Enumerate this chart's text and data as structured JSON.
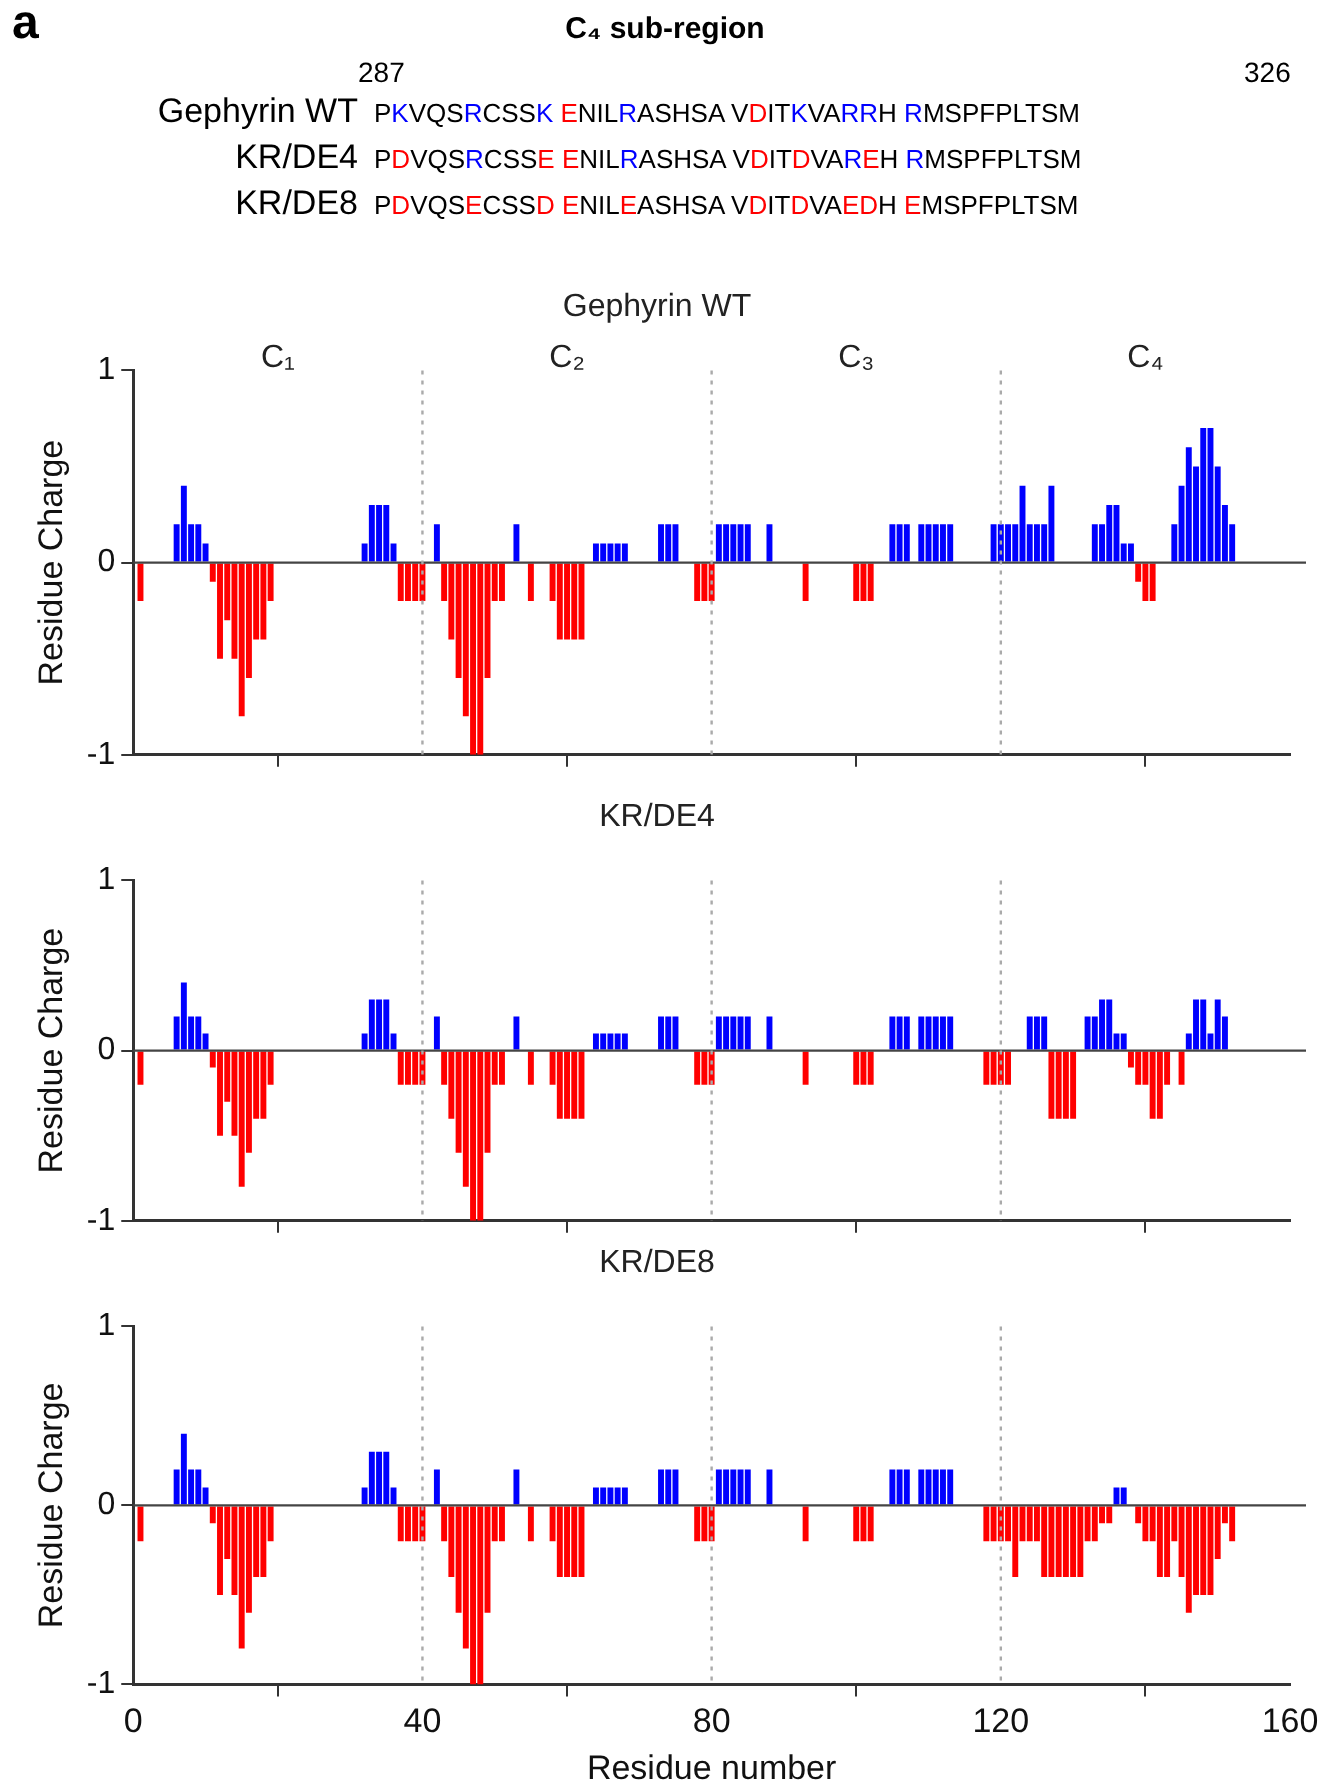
{
  "chart_data": [
    {
      "type": "other",
      "title": "C₄ sub-region",
      "categories": [
        "Gephyrin WT",
        "KR/DE4",
        "KR/DE8"
      ],
      "annotations": [
        "a",
        "287",
        "326",
        "PKVQSRCSSK ENILRASHSA VDITKVARRH RMSPFPLTSM",
        "PDVQSRCSSE ENILRASHSA VDITDVAREH RMSPFPLTSM",
        "PDVQSECSSD ENILEASHSA VDITDVAEDH EMSPFPLTSM"
      ]
    },
    {
      "type": "bar",
      "stacked": true,
      "title": "Gephyrin WT",
      "ylabel": "Residue Charge",
      "xlim": [
        0,
        160
      ],
      "xticks": [
        0,
        40,
        80,
        120,
        160
      ],
      "ylim": [
        -1,
        1
      ],
      "yticks": [
        -1,
        0,
        1
      ],
      "tick_labels": "y",
      "ref_lines": [
        {
          "axis": "y",
          "value": 0,
          "color": "#444444",
          "line_style": "solid"
        },
        {
          "axis": "x",
          "value": 40,
          "color": "#aaaaaa",
          "line_style": "dotted"
        },
        {
          "axis": "x",
          "value": 80,
          "color": "#aaaaaa",
          "line_style": "dotted"
        },
        {
          "axis": "x",
          "value": 120,
          "color": "#aaaaaa",
          "line_style": "dotted"
        }
      ],
      "annotations": [
        "C₁",
        "C₂",
        "C₃",
        "C₄"
      ],
      "series": [
        {
          "color": "#0000ff",
          "x": [
            6,
            7,
            8,
            9,
            10,
            32,
            33,
            34,
            35,
            36,
            42,
            53,
            64,
            65,
            66,
            67,
            68,
            73,
            74,
            75,
            81,
            82,
            83,
            84,
            85,
            88,
            105,
            106,
            107,
            109,
            110,
            111,
            112,
            113,
            119,
            120,
            121,
            122,
            123,
            124,
            125,
            126,
            127,
            133,
            134,
            135,
            136,
            137,
            138,
            144,
            145,
            146,
            147,
            148,
            149,
            150,
            151,
            152
          ],
          "values": [
            0.2,
            0.4,
            0.2,
            0.2,
            0.1,
            0.1,
            0.3,
            0.3,
            0.3,
            0.1,
            0.2,
            0.2,
            0.1,
            0.1,
            0.1,
            0.1,
            0.1,
            0.2,
            0.2,
            0.2,
            0.2,
            0.2,
            0.2,
            0.2,
            0.2,
            0.2,
            0.2,
            0.2,
            0.2,
            0.2,
            0.2,
            0.2,
            0.2,
            0.2,
            0.2,
            0.2,
            0.2,
            0.2,
            0.4,
            0.2,
            0.2,
            0.2,
            0.4,
            0.2,
            0.2,
            0.3,
            0.3,
            0.1,
            0.1,
            0.2,
            0.4,
            0.6,
            0.5,
            0.7,
            0.7,
            0.5,
            0.3,
            0.2
          ]
        },
        {
          "color": "#ff0000",
          "x": [
            1,
            11,
            12,
            13,
            14,
            15,
            16,
            17,
            18,
            19,
            37,
            38,
            39,
            40,
            43,
            44,
            45,
            46,
            47,
            48,
            49,
            50,
            51,
            55,
            58,
            59,
            60,
            61,
            62,
            78,
            79,
            80,
            93,
            100,
            101,
            102,
            139,
            140,
            141
          ],
          "values": [
            -0.2,
            -0.1,
            -0.5,
            -0.3,
            -0.5,
            -0.8,
            -0.6,
            -0.4,
            -0.4,
            -0.2,
            -0.2,
            -0.2,
            -0.2,
            -0.2,
            -0.2,
            -0.4,
            -0.6,
            -0.8,
            -1,
            -1,
            -0.6,
            -0.2,
            -0.2,
            -0.2,
            -0.2,
            -0.4,
            -0.4,
            -0.4,
            -0.4,
            -0.2,
            -0.2,
            -0.2,
            -0.2,
            -0.2,
            -0.2,
            -0.2,
            -0.1,
            -0.2,
            -0.2
          ]
        }
      ]
    },
    {
      "type": "bar",
      "stacked": true,
      "title": "KR/DE4",
      "ylabel": "Residue Charge",
      "xlim": [
        0,
        160
      ],
      "xticks": [
        0,
        40,
        80,
        120,
        160
      ],
      "ylim": [
        -1,
        1
      ],
      "yticks": [
        -1,
        0,
        1
      ],
      "tick_labels": "y",
      "ref_lines": [
        {
          "axis": "y",
          "value": 0,
          "color": "#444444",
          "line_style": "solid"
        },
        {
          "axis": "x",
          "value": 40,
          "color": "#aaaaaa",
          "line_style": "dotted"
        },
        {
          "axis": "x",
          "value": 80,
          "color": "#aaaaaa",
          "line_style": "dotted"
        },
        {
          "axis": "x",
          "value": 120,
          "color": "#aaaaaa",
          "line_style": "dotted"
        }
      ],
      "series": [
        {
          "color": "#0000ff",
          "x": [
            6,
            7,
            8,
            9,
            10,
            32,
            33,
            34,
            35,
            36,
            42,
            53,
            64,
            65,
            66,
            67,
            68,
            73,
            74,
            75,
            81,
            82,
            83,
            84,
            85,
            88,
            105,
            106,
            107,
            109,
            110,
            111,
            112,
            113,
            124,
            125,
            126,
            132,
            133,
            134,
            135,
            136,
            137,
            146,
            147,
            148,
            149,
            150,
            151
          ],
          "values": [
            0.2,
            0.4,
            0.2,
            0.2,
            0.1,
            0.1,
            0.3,
            0.3,
            0.3,
            0.1,
            0.2,
            0.2,
            0.1,
            0.1,
            0.1,
            0.1,
            0.1,
            0.2,
            0.2,
            0.2,
            0.2,
            0.2,
            0.2,
            0.2,
            0.2,
            0.2,
            0.2,
            0.2,
            0.2,
            0.2,
            0.2,
            0.2,
            0.2,
            0.2,
            0.2,
            0.2,
            0.2,
            0.2,
            0.2,
            0.3,
            0.3,
            0.1,
            0.1,
            0.1,
            0.3,
            0.3,
            0.1,
            0.3,
            0.2
          ]
        },
        {
          "color": "#ff0000",
          "x": [
            1,
            11,
            12,
            13,
            14,
            15,
            16,
            17,
            18,
            19,
            37,
            38,
            39,
            40,
            43,
            44,
            45,
            46,
            47,
            48,
            49,
            50,
            51,
            55,
            58,
            59,
            60,
            61,
            62,
            78,
            79,
            80,
            93,
            100,
            101,
            102,
            118,
            119,
            120,
            121,
            127,
            128,
            129,
            130,
            138,
            139,
            140,
            141,
            142,
            143,
            145
          ],
          "values": [
            -0.2,
            -0.1,
            -0.5,
            -0.3,
            -0.5,
            -0.8,
            -0.6,
            -0.4,
            -0.4,
            -0.2,
            -0.2,
            -0.2,
            -0.2,
            -0.2,
            -0.2,
            -0.4,
            -0.6,
            -0.8,
            -1,
            -1,
            -0.6,
            -0.2,
            -0.2,
            -0.2,
            -0.2,
            -0.4,
            -0.4,
            -0.4,
            -0.4,
            -0.2,
            -0.2,
            -0.2,
            -0.2,
            -0.2,
            -0.2,
            -0.2,
            -0.2,
            -0.2,
            -0.2,
            -0.2,
            -0.4,
            -0.4,
            -0.4,
            -0.4,
            -0.1,
            -0.2,
            -0.2,
            -0.4,
            -0.4,
            -0.2,
            -0.2
          ]
        }
      ]
    },
    {
      "type": "bar",
      "stacked": true,
      "title": "KR/DE8",
      "ylabel": "Residue Charge",
      "xlabel": "Residue number",
      "xlim": [
        0,
        160
      ],
      "xticks": [
        0,
        40,
        80,
        120,
        160
      ],
      "ylim": [
        -1,
        1
      ],
      "yticks": [
        -1,
        0,
        1
      ],
      "ref_lines": [
        {
          "axis": "y",
          "value": 0,
          "color": "#444444",
          "line_style": "solid"
        },
        {
          "axis": "x",
          "value": 40,
          "color": "#aaaaaa",
          "line_style": "dotted"
        },
        {
          "axis": "x",
          "value": 80,
          "color": "#aaaaaa",
          "line_style": "dotted"
        },
        {
          "axis": "x",
          "value": 120,
          "color": "#aaaaaa",
          "line_style": "dotted"
        }
      ],
      "series": [
        {
          "color": "#0000ff",
          "x": [
            6,
            7,
            8,
            9,
            10,
            32,
            33,
            34,
            35,
            36,
            42,
            53,
            64,
            65,
            66,
            67,
            68,
            73,
            74,
            75,
            81,
            82,
            83,
            84,
            85,
            88,
            105,
            106,
            107,
            109,
            110,
            111,
            112,
            113,
            136,
            137
          ],
          "values": [
            0.2,
            0.4,
            0.2,
            0.2,
            0.1,
            0.1,
            0.3,
            0.3,
            0.3,
            0.1,
            0.2,
            0.2,
            0.1,
            0.1,
            0.1,
            0.1,
            0.1,
            0.2,
            0.2,
            0.2,
            0.2,
            0.2,
            0.2,
            0.2,
            0.2,
            0.2,
            0.2,
            0.2,
            0.2,
            0.2,
            0.2,
            0.2,
            0.2,
            0.2,
            0.1,
            0.1
          ]
        },
        {
          "color": "#ff0000",
          "x": [
            1,
            11,
            12,
            13,
            14,
            15,
            16,
            17,
            18,
            19,
            37,
            38,
            39,
            40,
            43,
            44,
            45,
            46,
            47,
            48,
            49,
            50,
            51,
            55,
            58,
            59,
            60,
            61,
            62,
            78,
            79,
            80,
            93,
            100,
            101,
            102,
            118,
            119,
            120,
            121,
            122,
            123,
            124,
            125,
            126,
            127,
            128,
            129,
            130,
            131,
            132,
            133,
            134,
            135,
            139,
            140,
            141,
            142,
            143,
            144,
            145,
            146,
            147,
            148,
            149,
            150,
            151,
            152
          ],
          "values": [
            -0.2,
            -0.1,
            -0.5,
            -0.3,
            -0.5,
            -0.8,
            -0.6,
            -0.4,
            -0.4,
            -0.2,
            -0.2,
            -0.2,
            -0.2,
            -0.2,
            -0.2,
            -0.4,
            -0.6,
            -0.8,
            -1,
            -1,
            -0.6,
            -0.2,
            -0.2,
            -0.2,
            -0.2,
            -0.4,
            -0.4,
            -0.4,
            -0.4,
            -0.2,
            -0.2,
            -0.2,
            -0.2,
            -0.2,
            -0.2,
            -0.2,
            -0.2,
            -0.2,
            -0.2,
            -0.2,
            -0.4,
            -0.2,
            -0.2,
            -0.2,
            -0.4,
            -0.4,
            -0.4,
            -0.4,
            -0.4,
            -0.4,
            -0.2,
            -0.2,
            -0.1,
            -0.1,
            -0.1,
            -0.2,
            -0.2,
            -0.4,
            -0.4,
            -0.2,
            -0.4,
            -0.6,
            -0.5,
            -0.5,
            -0.5,
            -0.3,
            -0.1,
            -0.2
          ]
        }
      ]
    }
  ]
}
